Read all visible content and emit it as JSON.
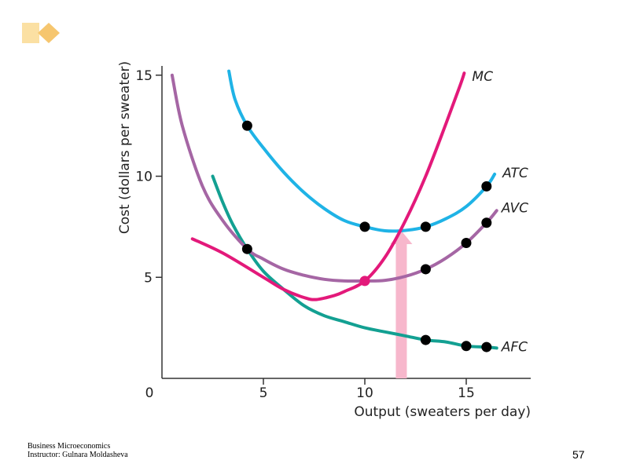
{
  "slide": {
    "footer_line1": "Business Microeconomics",
    "footer_line2": "Instructor: Gulnara Moldasheva",
    "page_number": "57",
    "logo_icon": "diamond-logo-icon",
    "logo_colors": [
      "#fbe0a3",
      "#f6c66f"
    ]
  },
  "chart_data": {
    "type": "line",
    "title": "",
    "xlabel": "Output (sweaters per day)",
    "ylabel": "Cost (dollars per sweater)",
    "xlim": [
      0,
      18
    ],
    "ylim": [
      0,
      15
    ],
    "x_ticks": [
      0,
      5,
      10,
      15
    ],
    "x_tick_labels": [
      "0",
      "5",
      "10",
      "15"
    ],
    "y_ticks": [
      5,
      10,
      15
    ],
    "y_tick_labels": [
      "5",
      "10",
      "15"
    ],
    "grid": false,
    "series": [
      {
        "name": "ATC",
        "label": "ATC",
        "color": "#1fb3e6",
        "curve": [
          [
            3.3,
            15.2
          ],
          [
            3.6,
            13.8
          ],
          [
            4.2,
            12.5
          ],
          [
            5,
            11.4
          ],
          [
            6,
            10.2
          ],
          [
            7,
            9.2
          ],
          [
            8,
            8.4
          ],
          [
            9,
            7.8
          ],
          [
            10,
            7.5
          ],
          [
            11,
            7.3
          ],
          [
            12,
            7.32
          ],
          [
            13,
            7.5
          ],
          [
            14,
            7.9
          ],
          [
            15,
            8.5
          ],
          [
            16,
            9.5
          ],
          [
            16.4,
            10.1
          ]
        ],
        "points": [
          [
            4.2,
            12.5
          ],
          [
            10,
            7.5
          ],
          [
            13,
            7.5
          ],
          [
            16,
            9.5
          ]
        ]
      },
      {
        "name": "AVC",
        "label": "AVC",
        "color": "#a566a4",
        "curve": [
          [
            0.5,
            15
          ],
          [
            1,
            12.5
          ],
          [
            2,
            9.5
          ],
          [
            3,
            7.8
          ],
          [
            4.2,
            6.4
          ],
          [
            5,
            5.9
          ],
          [
            6,
            5.4
          ],
          [
            7,
            5.1
          ],
          [
            8,
            4.9
          ],
          [
            9,
            4.82
          ],
          [
            10,
            4.82
          ],
          [
            11,
            4.85
          ],
          [
            12,
            5.05
          ],
          [
            13,
            5.4
          ],
          [
            14,
            5.95
          ],
          [
            15,
            6.7
          ],
          [
            16,
            7.7
          ],
          [
            16.5,
            8.3
          ]
        ],
        "points": [
          [
            4.2,
            6.4
          ],
          [
            13,
            5.4
          ],
          [
            15,
            6.7
          ],
          [
            16,
            7.7
          ]
        ]
      },
      {
        "name": "AFC",
        "label": "AFC",
        "color": "#13a092",
        "curve": [
          [
            2.5,
            10
          ],
          [
            3,
            8.7
          ],
          [
            3.5,
            7.6
          ],
          [
            4.2,
            6.4
          ],
          [
            5,
            5.3
          ],
          [
            6,
            4.4
          ],
          [
            7,
            3.6
          ],
          [
            8,
            3.1
          ],
          [
            9,
            2.8
          ],
          [
            10,
            2.5
          ],
          [
            11,
            2.3
          ],
          [
            12,
            2.1
          ],
          [
            13,
            1.9
          ],
          [
            14,
            1.8
          ],
          [
            15,
            1.6
          ],
          [
            16,
            1.55
          ],
          [
            16.5,
            1.5
          ]
        ],
        "points": [
          [
            13,
            1.9
          ],
          [
            15,
            1.6
          ],
          [
            16,
            1.55
          ]
        ]
      },
      {
        "name": "MC",
        "label": "MC",
        "color": "#e3197a",
        "curve": [
          [
            1.5,
            6.9
          ],
          [
            3,
            6.2
          ],
          [
            5,
            5
          ],
          [
            6,
            4.4
          ],
          [
            7,
            4
          ],
          [
            7.6,
            3.9
          ],
          [
            8.5,
            4.1
          ],
          [
            9,
            4.3
          ],
          [
            10,
            4.82
          ],
          [
            11,
            6
          ],
          [
            12,
            7.8
          ],
          [
            13,
            10
          ],
          [
            14,
            12.6
          ],
          [
            14.7,
            14.5
          ],
          [
            14.9,
            15.1
          ]
        ],
        "points": [
          [
            10,
            4.82
          ]
        ]
      }
    ],
    "arrow": {
      "x": 11.8,
      "from_y": 0,
      "to_y": 7.3,
      "color": "#f7b7cc"
    },
    "annotations": [
      {
        "text": "MC",
        "series": "MC"
      },
      {
        "text": "ATC",
        "series": "ATC"
      },
      {
        "text": "AVC",
        "series": "AVC"
      },
      {
        "text": "AFC",
        "series": "AFC"
      }
    ]
  }
}
